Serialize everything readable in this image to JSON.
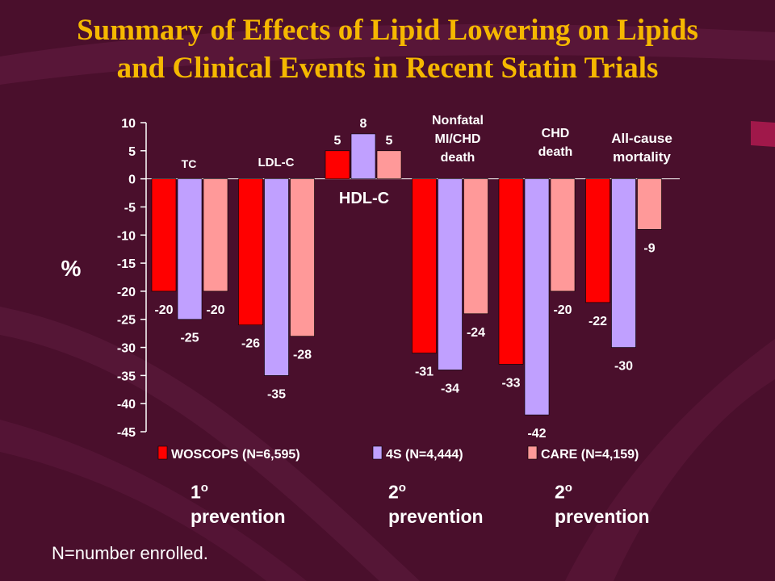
{
  "title_line1": "Summary of Effects of Lipid Lowering on Lipids",
  "title_line2": "and Clinical Events in Recent Statin Trials",
  "chart_data": {
    "type": "bar",
    "ylabel": "%",
    "ylim": [
      -45,
      10
    ],
    "yticks": [
      "10",
      "5",
      "0",
      "-5",
      "-10",
      "-15",
      "-20",
      "-25",
      "-30",
      "-35",
      "-40",
      "-45"
    ],
    "categories": [
      {
        "lines": [
          "TC"
        ]
      },
      {
        "lines": [
          "LDL-C"
        ]
      },
      {
        "lines": [
          "HDL-C"
        ]
      },
      {
        "lines": [
          "Nonfatal",
          "MI/CHD",
          "death"
        ]
      },
      {
        "lines": [
          "CHD",
          "death"
        ]
      },
      {
        "lines": [
          "All-cause",
          "mortality"
        ]
      }
    ],
    "series": [
      {
        "name": "WOSCOPS (N=6,595)",
        "color": "#ff0000",
        "values": [
          -20,
          -26,
          5,
          -31,
          -33,
          -22
        ]
      },
      {
        "name": "4S (N=4,444)",
        "color": "#c0a0ff",
        "values": [
          -25,
          -35,
          8,
          -34,
          -42,
          -30
        ]
      },
      {
        "name": "CARE (N=4,159)",
        "color": "#ff9999",
        "values": [
          -20,
          -28,
          5,
          -24,
          -20,
          -9
        ]
      }
    ],
    "legend_position": "bottom",
    "grid": false
  },
  "footer": {
    "prevention": [
      {
        "num": "1",
        "sup": "o",
        "label": "prevention"
      },
      {
        "num": "2",
        "sup": "o",
        "label": "prevention"
      },
      {
        "num": "2",
        "sup": "o",
        "label": "prevention"
      }
    ],
    "note": "N=number enrolled."
  },
  "colors": {
    "background": "#4a0f2c",
    "title": "#f5b800",
    "text": "#ffffff"
  }
}
